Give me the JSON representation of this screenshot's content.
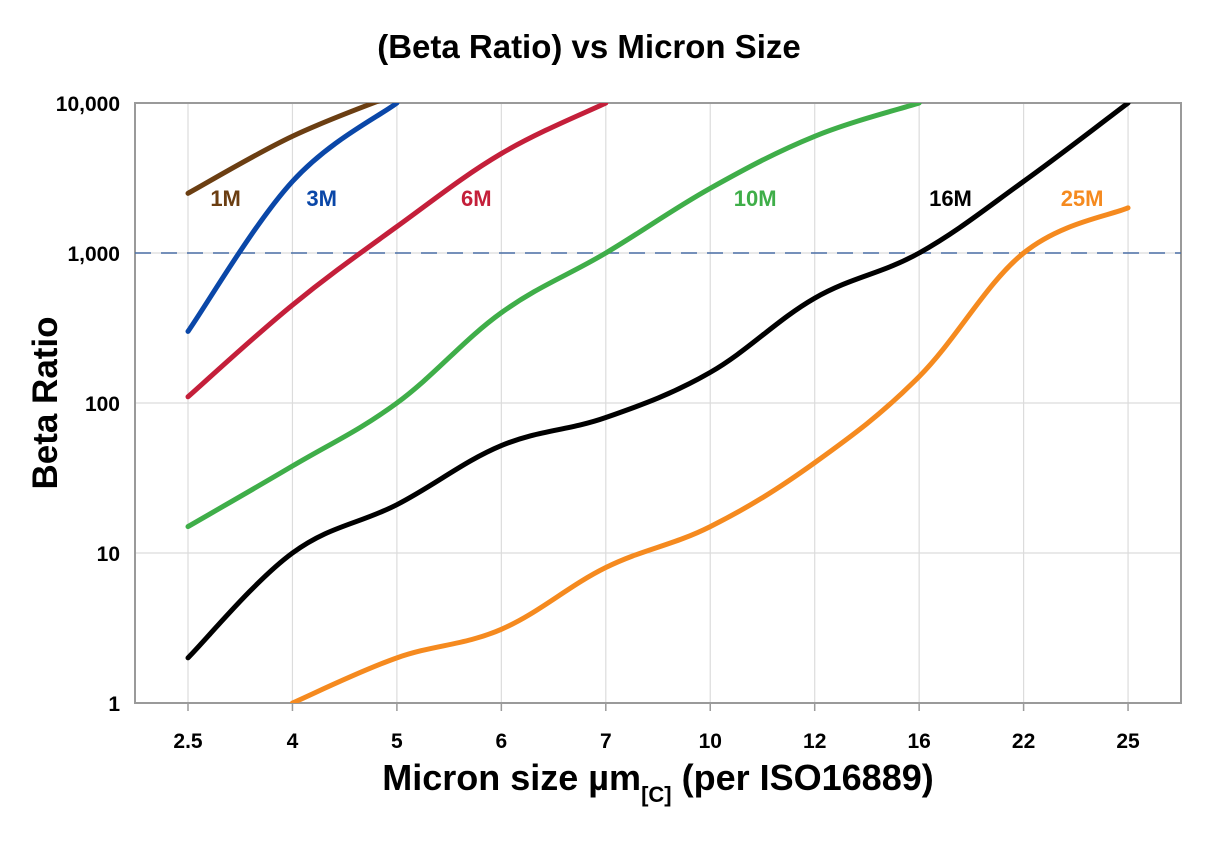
{
  "chart_data": {
    "type": "line",
    "title": "(Beta Ratio) vs Micron Size",
    "xlabel_main": "Micron size µm",
    "xlabel_sub": "[C]",
    "xlabel_tail": " (per ISO16889)",
    "ylabel": "Beta Ratio",
    "categories": [
      "2.5",
      "4",
      "5",
      "6",
      "7",
      "10",
      "12",
      "16",
      "22",
      "25"
    ],
    "yscale": "log",
    "ylim": [
      1,
      10000
    ],
    "yticks": [
      1,
      10,
      100,
      1000,
      10000
    ],
    "ytick_labels": [
      "1",
      "10",
      "100",
      "1,000",
      "10,000"
    ],
    "grid": true,
    "reference_line": {
      "value": 1000,
      "style": "dashed",
      "color": "#4a6fa5"
    },
    "series": [
      {
        "name": "1M",
        "color": "#6b3e12",
        "values": [
          2500,
          6000,
          11500,
          null,
          null,
          null,
          null,
          null,
          null,
          null
        ]
      },
      {
        "name": "3M",
        "color": "#0a47a8",
        "values": [
          300,
          3000,
          10000,
          null,
          null,
          null,
          null,
          null,
          null,
          null
        ]
      },
      {
        "name": "6M",
        "color": "#c41f3a",
        "values": [
          110,
          450,
          1500,
          4600,
          10000,
          null,
          null,
          null,
          null,
          null
        ]
      },
      {
        "name": "10M",
        "color": "#3fae49",
        "values": [
          15,
          38,
          100,
          400,
          1000,
          2700,
          6000,
          10000,
          null,
          null
        ]
      },
      {
        "name": "16M",
        "color": "#000000",
        "values": [
          2,
          10,
          21,
          52,
          80,
          160,
          500,
          1000,
          3000,
          10000
        ]
      },
      {
        "name": "25M",
        "color": "#f58a1f",
        "values": [
          null,
          1,
          2,
          3.1,
          8,
          15,
          40,
          150,
          1000,
          2000
        ]
      }
    ]
  }
}
